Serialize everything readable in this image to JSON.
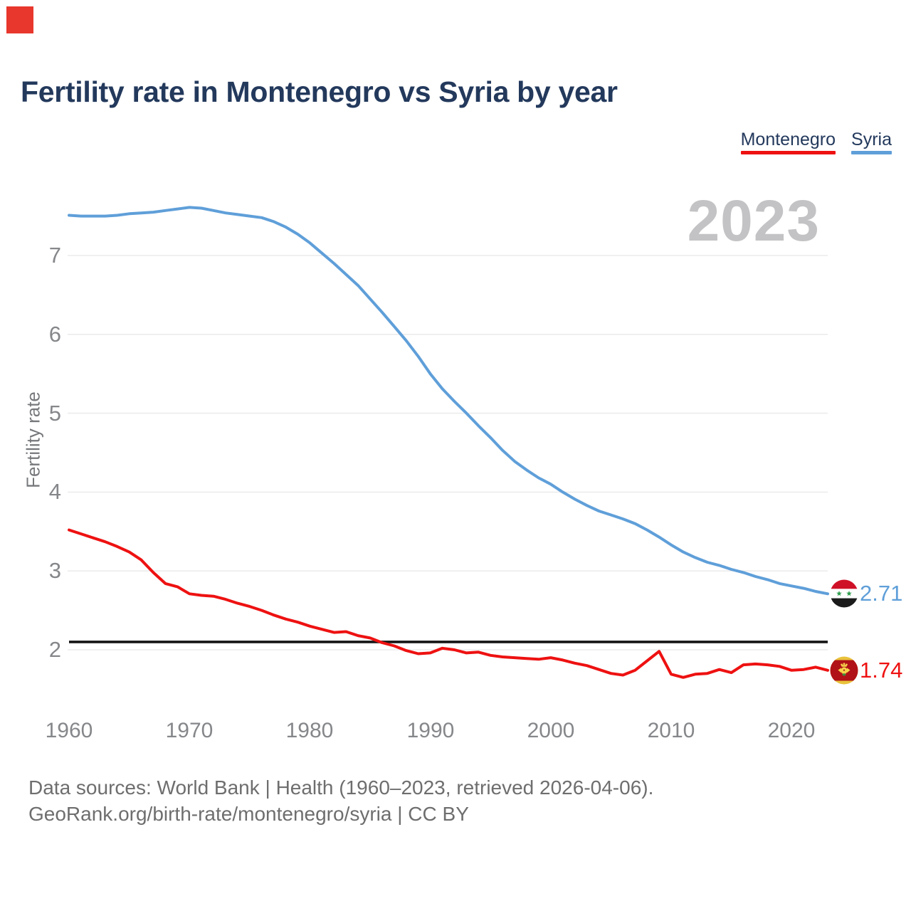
{
  "title": "Fertility rate in Montenegro vs Syria by year",
  "watermark": "2023",
  "legend": [
    {
      "label": "Montenegro",
      "color": "#ee1111"
    },
    {
      "label": "Syria",
      "color": "#5f9fd9"
    }
  ],
  "y_axis": {
    "label": "Fertility rate",
    "ticks": [
      7,
      6,
      5,
      4,
      3,
      2
    ]
  },
  "x_axis": {
    "ticks": [
      1960,
      1970,
      1980,
      1990,
      2000,
      2010,
      2020
    ]
  },
  "reference_line": {
    "value": 2.1,
    "color": "#141414"
  },
  "end_labels": [
    {
      "series": "Syria",
      "value": "2.71",
      "flag": "syria-flag"
    },
    {
      "series": "Montenegro",
      "value": "1.74",
      "flag": "montenegro-flag"
    }
  ],
  "footer": {
    "line1": "Data sources: World Bank | Health (1960–2023, retrieved 2026-04-06).",
    "line2": "GeoRank.org/birth-rate/montenegro/syria | CC BY"
  },
  "colors": {
    "montenegro": "#ee1111",
    "syria": "#5f9fd9",
    "grid": "#ececec",
    "reference": "#141414",
    "title_text": "#23395c",
    "axis_text": "#85878a",
    "watermark": "#c3c3c5",
    "footer_text": "#6e6e6e",
    "marker": "#e8372c"
  },
  "chart_data": {
    "type": "line",
    "title": "Fertility rate in Montenegro vs Syria by year",
    "xlabel": "",
    "ylabel": "Fertility rate",
    "x_range": [
      1960,
      2023
    ],
    "ylim": [
      1.6,
      7.8
    ],
    "y_gridlines": [
      2,
      3,
      4,
      5,
      6,
      7
    ],
    "grid": true,
    "legend_position": "top-right",
    "x": [
      1960,
      1961,
      1962,
      1963,
      1964,
      1965,
      1966,
      1967,
      1968,
      1969,
      1970,
      1971,
      1972,
      1973,
      1974,
      1975,
      1976,
      1977,
      1978,
      1979,
      1980,
      1981,
      1982,
      1983,
      1984,
      1985,
      1986,
      1987,
      1988,
      1989,
      1990,
      1991,
      1992,
      1993,
      1994,
      1995,
      1996,
      1997,
      1998,
      1999,
      2000,
      2001,
      2002,
      2003,
      2004,
      2005,
      2006,
      2007,
      2008,
      2009,
      2010,
      2011,
      2012,
      2013,
      2014,
      2015,
      2016,
      2017,
      2018,
      2019,
      2020,
      2021,
      2022,
      2023
    ],
    "series": [
      {
        "name": "Montenegro",
        "color": "#ee1111",
        "values": [
          3.52,
          3.47,
          3.42,
          3.37,
          3.31,
          3.24,
          3.14,
          2.98,
          2.84,
          2.8,
          2.71,
          2.69,
          2.68,
          2.64,
          2.59,
          2.55,
          2.5,
          2.44,
          2.39,
          2.35,
          2.3,
          2.26,
          2.22,
          2.23,
          2.18,
          2.15,
          2.09,
          2.05,
          1.99,
          1.95,
          1.96,
          2.02,
          2.0,
          1.96,
          1.97,
          1.93,
          1.91,
          1.9,
          1.89,
          1.88,
          1.9,
          1.87,
          1.83,
          1.8,
          1.75,
          1.7,
          1.68,
          1.74,
          1.86,
          1.98,
          1.69,
          1.65,
          1.69,
          1.7,
          1.75,
          1.71,
          1.81,
          1.82,
          1.81,
          1.79,
          1.74,
          1.75,
          1.78,
          1.74
        ]
      },
      {
        "name": "Syria",
        "color": "#5f9fd9",
        "values": [
          7.51,
          7.5,
          7.5,
          7.5,
          7.51,
          7.53,
          7.54,
          7.55,
          7.57,
          7.59,
          7.61,
          7.6,
          7.57,
          7.54,
          7.52,
          7.5,
          7.48,
          7.43,
          7.36,
          7.27,
          7.16,
          7.03,
          6.9,
          6.76,
          6.62,
          6.45,
          6.28,
          6.1,
          5.92,
          5.72,
          5.5,
          5.31,
          5.15,
          5.0,
          4.84,
          4.69,
          4.53,
          4.39,
          4.28,
          4.18,
          4.1,
          4.0,
          3.91,
          3.83,
          3.76,
          3.71,
          3.66,
          3.6,
          3.52,
          3.43,
          3.33,
          3.24,
          3.17,
          3.11,
          3.07,
          3.02,
          2.98,
          2.93,
          2.89,
          2.84,
          2.81,
          2.78,
          2.74,
          2.71
        ]
      }
    ]
  }
}
